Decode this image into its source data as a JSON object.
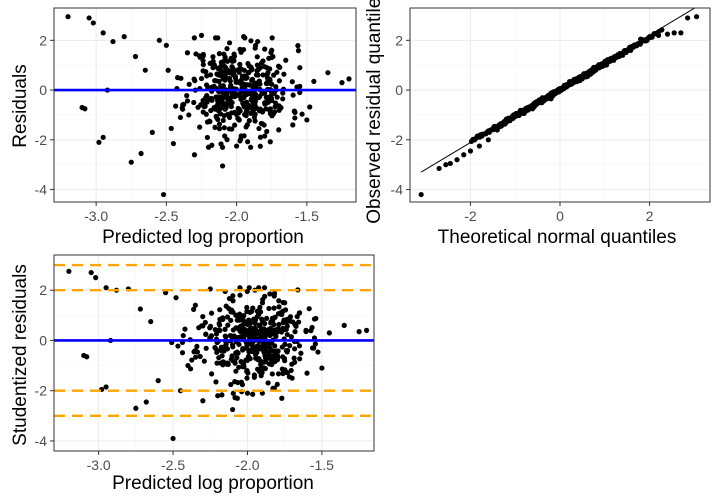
{
  "colors": {
    "point": "#000000",
    "zero_line": "#0000ff",
    "threshold_line": "#ffa500",
    "qq_line": "#000000",
    "grid": "#ebebeb"
  },
  "chart_data": [
    {
      "id": "residuals",
      "type": "scatter",
      "xlabel": "Predicted log proportion",
      "ylabel": "Residuals",
      "xlim": [
        -3.3,
        -1.15
      ],
      "ylim": [
        -4.5,
        3.3
      ],
      "xticks": [
        -3.0,
        -2.5,
        -2.0,
        -1.5
      ],
      "xtick_labels": [
        "-3.0",
        "-2.5",
        "-2.0",
        "-1.5"
      ],
      "yticks": [
        -4,
        -2,
        0,
        2
      ],
      "ytick_labels": [
        "-4",
        "-2",
        "0",
        "2"
      ],
      "grid": true,
      "hlines": [
        {
          "y": 0,
          "style": "solid",
          "color": "blue"
        }
      ],
      "points": [
        [
          -3.2,
          2.95
        ],
        [
          -3.05,
          2.9
        ],
        [
          -3.1,
          -0.7
        ],
        [
          -3.08,
          -0.75
        ],
        [
          -2.98,
          -2.1
        ],
        [
          -2.95,
          -1.9
        ],
        [
          -2.92,
          0.0
        ],
        [
          -3.02,
          2.7
        ],
        [
          -2.95,
          2.3
        ],
        [
          -2.88,
          1.95
        ],
        [
          -2.8,
          2.15
        ],
        [
          -2.75,
          -2.9
        ],
        [
          -2.72,
          1.35
        ],
        [
          -2.68,
          -2.55
        ],
        [
          -2.65,
          0.8
        ],
        [
          -2.6,
          -1.7
        ],
        [
          -2.55,
          2.0
        ],
        [
          -2.52,
          -4.2
        ],
        [
          -2.5,
          1.8
        ],
        [
          -2.45,
          -2.15
        ],
        [
          -2.42,
          0.5
        ],
        [
          -2.4,
          -1.1
        ],
        [
          -2.35,
          1.5
        ],
        [
          -2.3,
          -2.6
        ],
        [
          -2.25,
          2.2
        ],
        [
          -2.2,
          -2.3
        ],
        [
          -2.15,
          2.1
        ],
        [
          -2.1,
          -3.05
        ],
        [
          -2.05,
          1.9
        ],
        [
          -2.0,
          -2.25
        ],
        [
          -1.95,
          2.15
        ],
        [
          -1.9,
          -2.3
        ],
        [
          -1.85,
          1.95
        ],
        [
          -1.8,
          -1.85
        ],
        [
          -1.75,
          1.6
        ],
        [
          -1.7,
          -1.6
        ],
        [
          -1.65,
          1.2
        ],
        [
          -1.6,
          -1.4
        ],
        [
          -1.55,
          0.9
        ],
        [
          -1.5,
          -1.2
        ],
        [
          -1.45,
          0.35
        ],
        [
          -1.35,
          0.7
        ],
        [
          -1.25,
          0.3
        ],
        [
          -1.2,
          0.45
        ],
        [
          -1.55,
          0.15
        ],
        [
          -2.05,
          -0.4
        ],
        [
          -1.98,
          0.3
        ],
        [
          -2.12,
          0.6
        ],
        [
          -1.88,
          -0.8
        ],
        [
          -2.22,
          -0.3
        ]
      ],
      "cloud": {
        "n": 420,
        "x_center": -1.98,
        "x_sd": 0.18,
        "y_sd": 0.9,
        "seed": 11
      }
    },
    {
      "id": "qq",
      "type": "scatter",
      "xlabel": "Theoretical normal quantiles",
      "ylabel": "Observed residual quantiles",
      "xlim": [
        -3.35,
        3.35
      ],
      "ylim": [
        -4.5,
        3.3
      ],
      "xticks": [
        -2,
        0,
        2
      ],
      "xtick_labels": [
        "-2",
        "0",
        "2"
      ],
      "yticks": [
        -4,
        -2,
        0,
        2
      ],
      "ytick_labels": [
        "-4",
        "-2",
        "0",
        "2"
      ],
      "grid": true,
      "reference_line": {
        "slope": 1.08,
        "intercept": 0.05,
        "x_range": [
          -3.1,
          3.1
        ]
      },
      "points": [
        [
          -3.1,
          -4.2
        ],
        [
          -2.7,
          -3.15
        ],
        [
          -2.55,
          -3.0
        ],
        [
          -2.45,
          -2.95
        ],
        [
          -2.3,
          -2.8
        ],
        [
          -2.15,
          -2.6
        ],
        [
          -2.0,
          -2.45
        ],
        [
          -1.8,
          -2.25
        ],
        [
          -1.6,
          -2.0
        ],
        [
          -1.4,
          -1.6
        ],
        [
          -1.2,
          -1.3
        ],
        [
          -1.0,
          -1.05
        ],
        [
          -0.8,
          -0.85
        ],
        [
          -0.6,
          -0.65
        ],
        [
          -0.4,
          -0.5
        ],
        [
          -0.2,
          -0.35
        ],
        [
          0.0,
          0.0
        ],
        [
          0.2,
          0.25
        ],
        [
          0.4,
          0.45
        ],
        [
          0.6,
          0.65
        ],
        [
          0.8,
          0.8
        ],
        [
          1.0,
          1.0
        ],
        [
          1.2,
          1.2
        ],
        [
          1.4,
          1.4
        ],
        [
          1.6,
          1.75
        ],
        [
          1.8,
          2.05
        ],
        [
          2.0,
          2.15
        ],
        [
          2.2,
          2.2
        ],
        [
          2.4,
          2.25
        ],
        [
          2.55,
          2.3
        ],
        [
          2.7,
          2.3
        ],
        [
          2.85,
          2.9
        ],
        [
          3.05,
          2.95
        ]
      ],
      "qq_fill": {
        "n": 480,
        "seed": 5
      }
    },
    {
      "id": "studentized",
      "type": "scatter",
      "xlabel": "Predicted log proportion",
      "ylabel": "Studentized residuals",
      "xlim": [
        -3.3,
        -1.15
      ],
      "ylim": [
        -4.4,
        3.4
      ],
      "xticks": [
        -3.0,
        -2.5,
        -2.0,
        -1.5
      ],
      "xtick_labels": [
        "-3.0",
        "-2.5",
        "-2.0",
        "-1.5"
      ],
      "yticks": [
        -4,
        -2,
        0,
        2
      ],
      "ytick_labels": [
        "-4",
        "-2",
        "0",
        "2"
      ],
      "grid": true,
      "hlines": [
        {
          "y": 0,
          "style": "solid",
          "color": "blue"
        },
        {
          "y": 2,
          "style": "dashed",
          "color": "orange"
        },
        {
          "y": -2,
          "style": "dashed",
          "color": "orange"
        },
        {
          "y": 3,
          "style": "dashed",
          "color": "orange"
        },
        {
          "y": -3,
          "style": "dashed",
          "color": "orange"
        }
      ],
      "points": [
        [
          -3.2,
          2.75
        ],
        [
          -3.05,
          2.7
        ],
        [
          -3.1,
          -0.6
        ],
        [
          -3.08,
          -0.65
        ],
        [
          -2.98,
          -1.95
        ],
        [
          -2.95,
          -1.85
        ],
        [
          -2.92,
          0.0
        ],
        [
          -3.02,
          2.5
        ],
        [
          -2.95,
          2.1
        ],
        [
          -2.88,
          2.0
        ],
        [
          -2.8,
          2.05
        ],
        [
          -2.75,
          -2.7
        ],
        [
          -2.72,
          1.25
        ],
        [
          -2.68,
          -2.45
        ],
        [
          -2.65,
          0.75
        ],
        [
          -2.6,
          -1.6
        ],
        [
          -2.55,
          1.9
        ],
        [
          -2.5,
          -3.9
        ],
        [
          -2.48,
          1.7
        ],
        [
          -2.45,
          -2.0
        ],
        [
          -2.42,
          0.45
        ],
        [
          -2.4,
          -1.0
        ],
        [
          -2.35,
          1.4
        ],
        [
          -2.3,
          -2.4
        ],
        [
          -2.25,
          2.05
        ],
        [
          -2.2,
          -2.2
        ],
        [
          -2.15,
          1.95
        ],
        [
          -2.1,
          -2.75
        ],
        [
          -2.05,
          1.8
        ],
        [
          -2.0,
          -2.1
        ],
        [
          -1.95,
          2.0
        ],
        [
          -1.9,
          -2.1
        ],
        [
          -1.85,
          1.85
        ],
        [
          -1.8,
          -1.75
        ],
        [
          -1.75,
          1.5
        ],
        [
          -1.7,
          -1.5
        ],
        [
          -1.65,
          1.1
        ],
        [
          -1.6,
          -1.3
        ],
        [
          -1.55,
          0.85
        ],
        [
          -1.5,
          -1.1
        ],
        [
          -1.45,
          0.3
        ],
        [
          -1.35,
          0.6
        ],
        [
          -1.25,
          0.35
        ],
        [
          -1.2,
          0.4
        ],
        [
          -1.55,
          0.1
        ]
      ],
      "cloud": {
        "n": 420,
        "x_center": -1.98,
        "x_sd": 0.18,
        "y_sd": 0.85,
        "seed": 23
      }
    }
  ]
}
